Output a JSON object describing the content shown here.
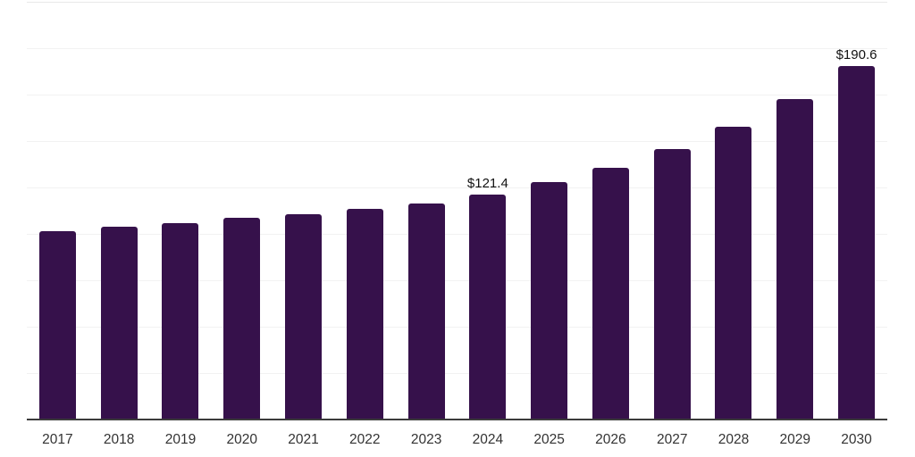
{
  "chart_data": {
    "type": "bar",
    "title": "",
    "xlabel": "",
    "ylabel": "",
    "categories": [
      "2017",
      "2018",
      "2019",
      "2020",
      "2021",
      "2022",
      "2023",
      "2024",
      "2025",
      "2026",
      "2027",
      "2028",
      "2029",
      "2030"
    ],
    "values": [
      101.6,
      104.0,
      105.9,
      108.8,
      110.8,
      113.3,
      116.5,
      121.4,
      127.9,
      135.8,
      145.6,
      157.9,
      172.7,
      190.6
    ],
    "point_labels": {
      "2024": "$121.4",
      "2030": "$190.6"
    },
    "ylim": [
      0,
      225
    ],
    "grid": true,
    "grid_step": 25,
    "legend": "none",
    "colors": {
      "bar": "#36114b",
      "gridline": "#f2f2f2",
      "gridline_top": "#e8e8e8",
      "axis_line": "#3c3c3c",
      "value_label": "#111111",
      "tick_label": "#333333",
      "background": "#ffffff"
    }
  }
}
